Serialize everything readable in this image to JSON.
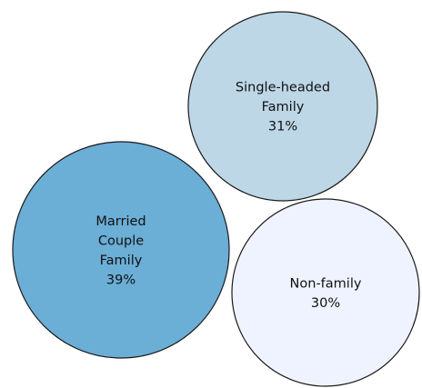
{
  "chart_data": {
    "type": "bubble",
    "title": "",
    "series": [
      {
        "name": "Married Couple Family",
        "label_lines": [
          "Married",
          "Couple",
          "Family",
          "39%"
        ],
        "value": 39,
        "color": "#6baed6"
      },
      {
        "name": "Single-headed Family",
        "label_lines": [
          "Single-headed",
          "Family",
          "31%"
        ],
        "value": 31,
        "color": "#bdd7e7"
      },
      {
        "name": "Non-family",
        "label_lines": [
          "Non-family",
          "30%"
        ],
        "value": 30,
        "color": "#eff3ff"
      }
    ],
    "legend": "none",
    "grid": false
  }
}
